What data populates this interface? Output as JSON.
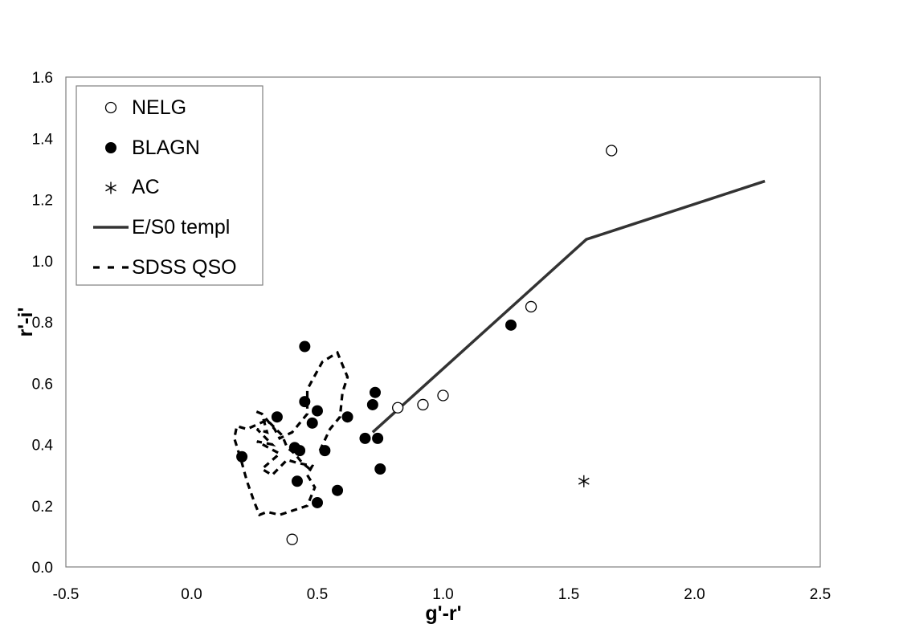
{
  "chart_data": {
    "type": "scatter",
    "xlabel": "g'-r'",
    "ylabel": "r'-i'",
    "xlim": [
      -0.5,
      2.5
    ],
    "ylim": [
      0.0,
      1.6
    ],
    "x_ticks": [
      "-0.5",
      "0.0",
      "0.5",
      "1.0",
      "1.5",
      "2.0",
      "2.5"
    ],
    "y_ticks": [
      "0.0",
      "0.2",
      "0.4",
      "0.6",
      "0.8",
      "1.0",
      "1.2",
      "1.4",
      "1.6"
    ],
    "grid": false,
    "legend_position": "top-left",
    "series": [
      {
        "name": "NELG",
        "marker": "open-circle",
        "points": [
          [
            0.4,
            0.09
          ],
          [
            0.82,
            0.52
          ],
          [
            0.92,
            0.53
          ],
          [
            1.0,
            0.56
          ],
          [
            1.35,
            0.85
          ],
          [
            1.67,
            1.36
          ]
        ]
      },
      {
        "name": "BLAGN",
        "marker": "filled-circle",
        "points": [
          [
            0.2,
            0.36
          ],
          [
            0.34,
            0.49
          ],
          [
            0.41,
            0.39
          ],
          [
            0.42,
            0.28
          ],
          [
            0.43,
            0.38
          ],
          [
            0.45,
            0.72
          ],
          [
            0.45,
            0.54
          ],
          [
            0.48,
            0.47
          ],
          [
            0.5,
            0.51
          ],
          [
            0.5,
            0.21
          ],
          [
            0.53,
            0.38
          ],
          [
            0.58,
            0.25
          ],
          [
            0.62,
            0.49
          ],
          [
            0.69,
            0.42
          ],
          [
            0.72,
            0.53
          ],
          [
            0.73,
            0.57
          ],
          [
            0.74,
            0.42
          ],
          [
            0.75,
            0.32
          ],
          [
            1.27,
            0.79
          ]
        ]
      },
      {
        "name": "AC",
        "marker": "asterisk",
        "points": [
          [
            1.56,
            0.28
          ]
        ]
      },
      {
        "name": "E/S0 templ",
        "marker": "solid-line",
        "color": "#333333",
        "points": [
          [
            0.72,
            0.44
          ],
          [
            1.57,
            1.07
          ],
          [
            2.28,
            1.26
          ]
        ]
      },
      {
        "name": "SDSS QSO",
        "marker": "dashed-line",
        "color": "#000000",
        "points": [
          [
            0.51,
            0.38
          ],
          [
            0.55,
            0.45
          ],
          [
            0.59,
            0.49
          ],
          [
            0.6,
            0.57
          ],
          [
            0.62,
            0.62
          ],
          [
            0.58,
            0.7
          ],
          [
            0.52,
            0.67
          ],
          [
            0.5,
            0.64
          ],
          [
            0.46,
            0.58
          ],
          [
            0.46,
            0.5
          ],
          [
            0.4,
            0.44
          ],
          [
            0.35,
            0.42
          ],
          [
            0.33,
            0.45
          ],
          [
            0.28,
            0.5
          ],
          [
            0.25,
            0.51
          ],
          [
            0.28,
            0.5
          ],
          [
            0.3,
            0.44
          ],
          [
            0.26,
            0.45
          ],
          [
            0.32,
            0.4
          ],
          [
            0.26,
            0.41
          ],
          [
            0.35,
            0.37
          ],
          [
            0.28,
            0.32
          ],
          [
            0.32,
            0.3
          ],
          [
            0.38,
            0.35
          ],
          [
            0.42,
            0.34
          ],
          [
            0.48,
            0.33
          ],
          [
            0.46,
            0.3
          ],
          [
            0.49,
            0.26
          ],
          [
            0.46,
            0.2
          ],
          [
            0.35,
            0.17
          ],
          [
            0.3,
            0.18
          ],
          [
            0.27,
            0.17
          ],
          [
            0.25,
            0.21
          ],
          [
            0.22,
            0.28
          ],
          [
            0.2,
            0.34
          ],
          [
            0.17,
            0.42
          ],
          [
            0.18,
            0.46
          ],
          [
            0.22,
            0.45
          ],
          [
            0.3,
            0.48
          ],
          [
            0.36,
            0.43
          ],
          [
            0.38,
            0.39
          ],
          [
            0.41,
            0.37
          ],
          [
            0.44,
            0.34
          ],
          [
            0.47,
            0.32
          ]
        ]
      }
    ]
  },
  "legend": {
    "items": [
      {
        "label": "NELG",
        "marker": "open-circle"
      },
      {
        "label": "BLAGN",
        "marker": "filled-circle"
      },
      {
        "label": "AC",
        "marker": "asterisk"
      },
      {
        "label": "E/S0 templ",
        "marker": "solid-line"
      },
      {
        "label": "SDSS QSO",
        "marker": "dashed-line"
      }
    ]
  }
}
